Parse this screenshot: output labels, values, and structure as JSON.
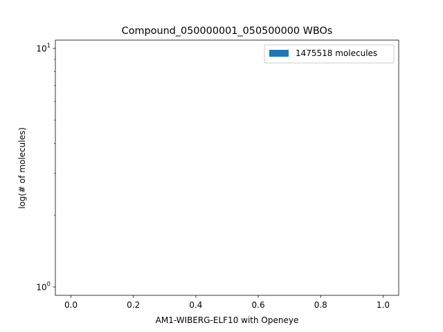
{
  "chart_data": {
    "type": "bar",
    "title": "Compound_050000001_050500000 WBOs",
    "xlabel": "AM1-WIBERG-ELF10 with Openeye",
    "ylabel": "log(# of molecules)",
    "xlim": [
      -0.05,
      1.05
    ],
    "ylim_log10": [
      -0.035,
      1.035
    ],
    "yscale": "log",
    "x_ticks": [
      0.0,
      0.2,
      0.4,
      0.6,
      0.8,
      1.0
    ],
    "x_tick_labels": [
      "0.0",
      "0.2",
      "0.4",
      "0.6",
      "0.8",
      "1.0"
    ],
    "y_ticks": [
      {
        "value": 1,
        "base": "10",
        "exp": "0"
      },
      {
        "value": 10,
        "base": "10",
        "exp": "1"
      }
    ],
    "grid": false,
    "legend_position": "top-right",
    "series": [
      {
        "name": "1475518 molecules",
        "color": "#1f77b4",
        "values": []
      }
    ]
  }
}
